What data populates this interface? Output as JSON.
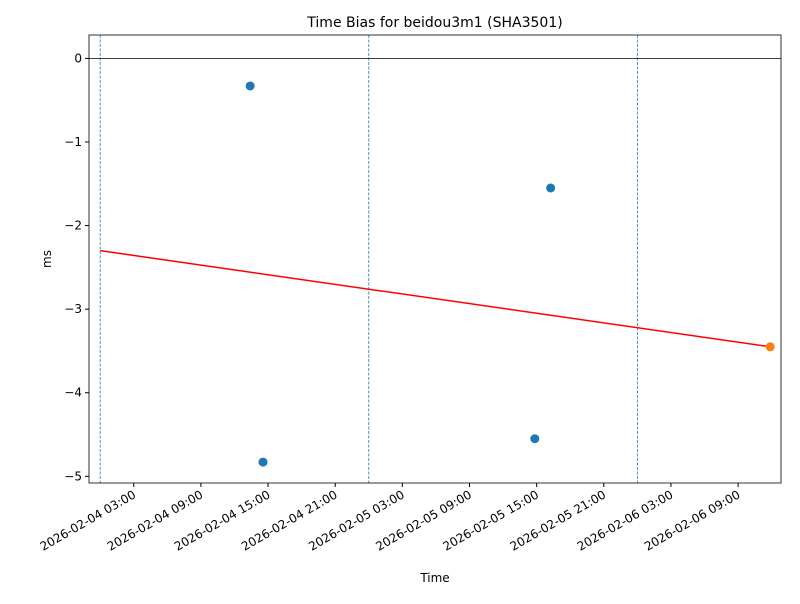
{
  "chart_data": {
    "type": "scatter",
    "title": "Time Bias for beidou3m1 (SHA3501)",
    "x_label": "Time",
    "y_label": "ms",
    "xlim": [
      "2026-02-03 23:00",
      "2026-02-06 12:50"
    ],
    "ylim": [
      -5.08,
      0.28
    ],
    "xticks": [
      "2026-02-04 03:00",
      "2026-02-04 09:00",
      "2026-02-04 15:00",
      "2026-02-04 21:00",
      "2026-02-05 03:00",
      "2026-02-05 09:00",
      "2026-02-05 15:00",
      "2026-02-05 21:00",
      "2026-02-06 03:00",
      "2026-02-06 09:00"
    ],
    "yticks": [
      0,
      {
        "value": -1,
        "label": "−1"
      },
      {
        "value": -2,
        "label": "−2"
      },
      {
        "value": -3,
        "label": "−3"
      },
      {
        "value": -4,
        "label": "−4"
      },
      {
        "value": -5,
        "label": "−5"
      }
    ],
    "hlines": [
      0
    ],
    "hline_color": "#000000",
    "vlines": [
      "2026-02-04 00:00",
      "2026-02-05 00:00",
      "2026-02-06 00:00"
    ],
    "vline_color": "#1f77b4",
    "series": [
      {
        "color": "#1f77b4",
        "x": [
          "2026-02-04 13:24",
          "2026-02-04 14:33",
          "2026-02-05 14:50",
          "2026-02-05 16:15"
        ],
        "values": [
          -0.33,
          -4.83,
          -4.55,
          -1.55
        ]
      },
      {
        "color": "#ff7f0e",
        "x": [
          "2026-02-06 11:52"
        ],
        "values": [
          -3.45
        ]
      }
    ],
    "trend": {
      "color": "#ff0000",
      "x": [
        "2026-02-04 00:00",
        "2026-02-06 11:52"
      ],
      "values": [
        -2.3,
        -3.45
      ]
    }
  }
}
